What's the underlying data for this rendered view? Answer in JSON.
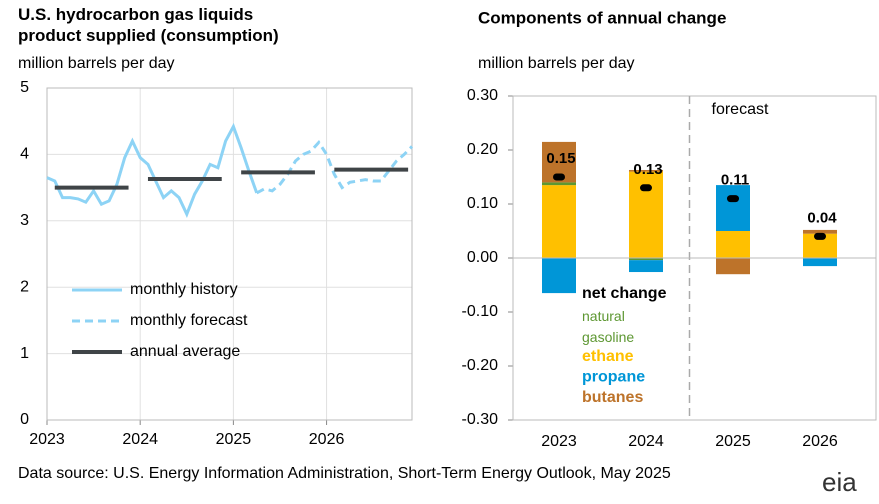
{
  "source": "Data source: U.S. Energy Information Administration, Short-Term Energy Outlook, May 2025",
  "logo": "eia",
  "chart_data": [
    {
      "type": "line",
      "title": "U.S. hydrocarbon gas liquids product supplied (consumption)",
      "ylabel": "million barrels per day",
      "categories": [
        "2023",
        null,
        null,
        null,
        null,
        null,
        null,
        null,
        null,
        null,
        null,
        null,
        "2024",
        null,
        null,
        null,
        null,
        null,
        null,
        null,
        null,
        null,
        null,
        null,
        "2025",
        null,
        null,
        null,
        null,
        null,
        null,
        null,
        null,
        null,
        null,
        null,
        "2026",
        null,
        null,
        null,
        null,
        null,
        null,
        null,
        null,
        null,
        null,
        null
      ],
      "ylim": [
        0,
        5
      ],
      "yticks": [
        0,
        1,
        2,
        3,
        4,
        5
      ],
      "grid": true,
      "legend": "lower left",
      "series": [
        {
          "name": "monthly history",
          "color": "#8dd3f5",
          "dashed": false,
          "values": [
            3.65,
            3.6,
            3.35,
            3.35,
            3.33,
            3.28,
            3.45,
            3.25,
            3.3,
            3.55,
            3.95,
            4.2,
            3.95,
            3.85,
            3.6,
            3.35,
            3.45,
            3.35,
            3.1,
            3.4,
            3.6,
            3.85,
            3.8,
            4.2,
            4.42,
            4.1,
            3.75,
            3.42,
            null,
            null,
            null,
            null,
            null,
            null,
            null,
            null,
            null,
            null,
            null,
            null,
            null,
            null,
            null,
            null,
            null,
            null,
            null,
            null
          ]
        },
        {
          "name": "monthly forecast",
          "color": "#8dd3f5",
          "dashed": true,
          "values": [
            null,
            null,
            null,
            null,
            null,
            null,
            null,
            null,
            null,
            null,
            null,
            null,
            null,
            null,
            null,
            null,
            null,
            null,
            null,
            null,
            null,
            null,
            null,
            null,
            null,
            null,
            null,
            3.42,
            3.48,
            3.45,
            3.55,
            3.7,
            3.9,
            4.0,
            4.05,
            4.18,
            4.0,
            3.7,
            3.5,
            3.58,
            3.6,
            3.62,
            3.6,
            3.6,
            3.75,
            3.9,
            4.0,
            4.12
          ]
        }
      ],
      "annual_average": {
        "name": "annual average",
        "color": "#3f4447",
        "values": [
          3.5,
          3.63,
          3.73,
          3.77
        ]
      }
    },
    {
      "type": "bar",
      "stacked": true,
      "title": "Components of annual change",
      "ylabel": "million barrels per day",
      "categories": [
        "2023",
        "2024",
        "2025",
        "2026"
      ],
      "ylim": [
        -0.3,
        0.3
      ],
      "yticks": [
        {
          "value": 0.3,
          "label": "0.30"
        },
        {
          "value": 0.2,
          "label": "0.20"
        },
        {
          "value": 0.1,
          "label": "0.10"
        },
        {
          "value": 0,
          "label": "0.00"
        },
        {
          "value": -0.1,
          "label": "-0.10"
        },
        {
          "value": -0.2,
          "label": "-0.20"
        },
        {
          "value": -0.3,
          "label": "-0.30"
        }
      ],
      "grid": false,
      "annotation": "forecast",
      "series": [
        {
          "name": "natural gasoline",
          "color": "#5d9732",
          "values": [
            0.005,
            -0.004,
            0,
            0
          ]
        },
        {
          "name": "ethane",
          "color": "#ffc000",
          "values": [
            0.135,
            0.16,
            0.05,
            0.045
          ]
        },
        {
          "name": "propane",
          "color": "#0096d7",
          "values": [
            -0.065,
            -0.022,
            0.085,
            -0.015
          ]
        },
        {
          "name": "butanes",
          "color": "#bd732a",
          "values": [
            0.075,
            0.003,
            -0.03,
            0.007
          ]
        }
      ],
      "net": {
        "name": "net change",
        "color": "#000000",
        "values": [
          0.15,
          0.13,
          0.11,
          0.04
        ]
      }
    }
  ]
}
